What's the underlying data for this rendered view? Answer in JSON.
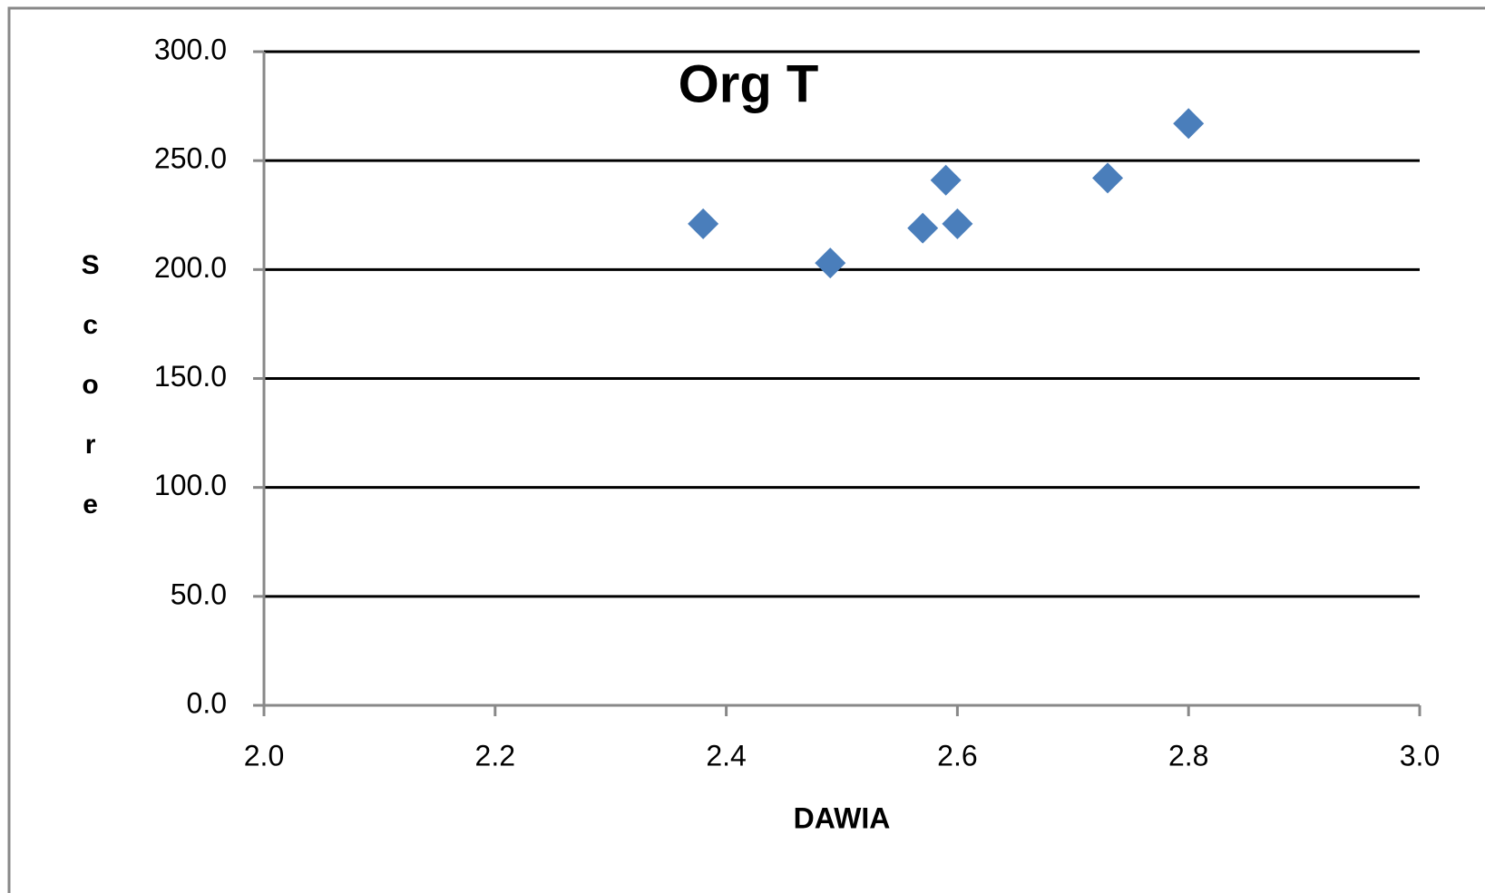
{
  "chart_data": {
    "type": "scatter",
    "title": "Org T",
    "x_label": "DAWIA",
    "y_label": "Score",
    "series": [
      {
        "color": "#4a7ebb",
        "x": [
          2.38,
          2.49,
          2.57,
          2.59,
          2.6,
          2.73,
          2.8
        ],
        "values": [
          221,
          203,
          219,
          241,
          221,
          242,
          267
        ]
      }
    ],
    "xlim": [
      2.0,
      3.0
    ],
    "xticks": [
      {
        "value": 2.0,
        "label": "2.0"
      },
      {
        "value": 2.2,
        "label": "2.2"
      },
      {
        "value": 2.4,
        "label": "2.4"
      },
      {
        "value": 2.6,
        "label": "2.6"
      },
      {
        "value": 2.8,
        "label": "2.8"
      },
      {
        "value": 3.0,
        "label": "3.0"
      }
    ],
    "ylim": [
      0,
      300
    ],
    "yticks": [
      {
        "value": 0,
        "label": "0.0"
      },
      {
        "value": 50,
        "label": "50.0"
      },
      {
        "value": 100,
        "label": "100.0"
      },
      {
        "value": 150,
        "label": "150.0"
      },
      {
        "value": 200,
        "label": "200.0"
      },
      {
        "value": 250,
        "label": "250.0"
      },
      {
        "value": 300,
        "label": "300.0"
      }
    ],
    "grid": true
  }
}
